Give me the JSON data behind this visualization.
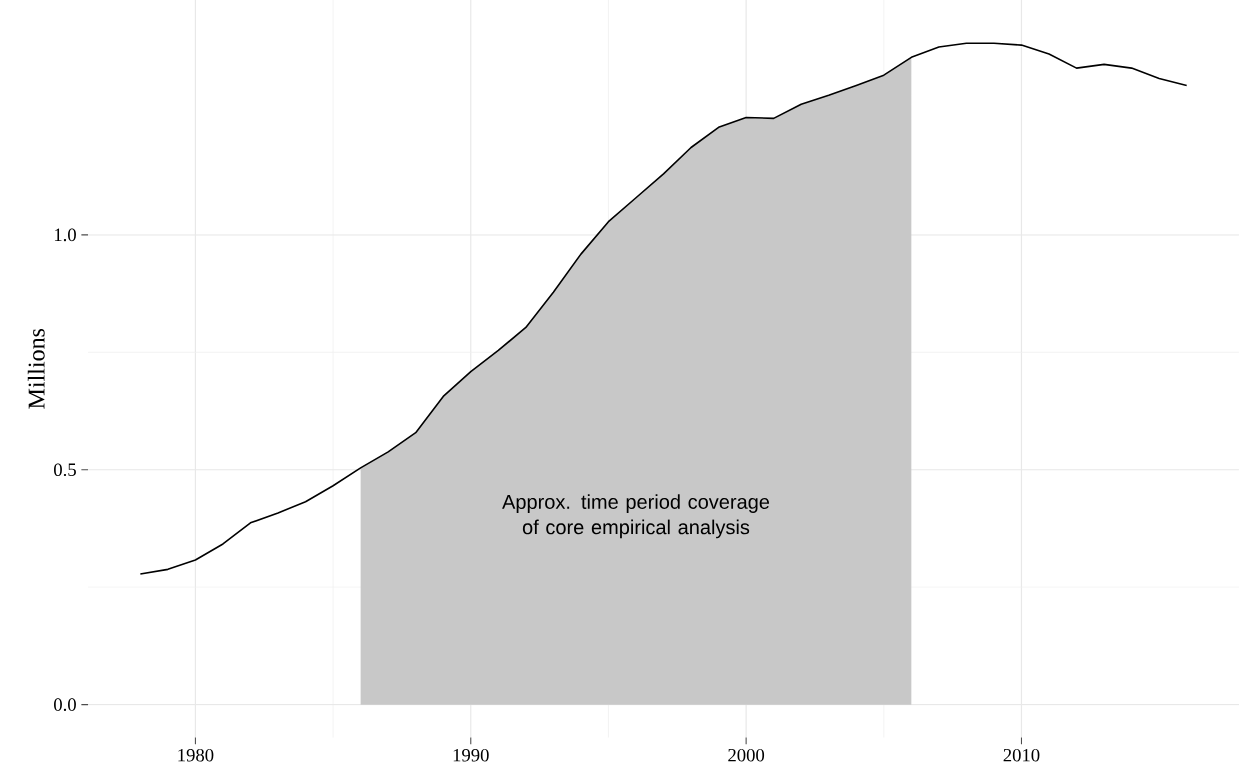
{
  "chart_data": {
    "type": "line",
    "ylabel": "Millions",
    "xlim": [
      1976.1,
      2017.9
    ],
    "ylim": [
      -0.07,
      1.5
    ],
    "xticks": [
      1980,
      1990,
      2000,
      2010
    ],
    "yticks": [
      {
        "value": 0,
        "label": "0.0"
      },
      {
        "value": 0.5,
        "label": "0.5"
      },
      {
        "value": 1,
        "label": "1.0"
      }
    ],
    "grid": true,
    "series": [
      {
        "type": "area",
        "color": "#c8c8c8",
        "x": [
          1986,
          1987,
          1988,
          1989,
          1990,
          1991,
          1992,
          1993,
          1994,
          1995,
          1996,
          1997,
          1998,
          1999,
          2000,
          2001,
          2002,
          2003,
          2004,
          2005,
          2006
        ],
        "values": [
          0.504,
          0.538,
          0.579,
          0.656,
          0.709,
          0.754,
          0.803,
          0.878,
          0.959,
          1.028,
          1.079,
          1.13,
          1.186,
          1.229,
          1.25,
          1.248,
          1.278,
          1.297,
          1.318,
          1.34,
          1.378
        ]
      },
      {
        "color": "#000000",
        "x": [
          1978,
          1979,
          1980,
          1981,
          1982,
          1983,
          1984,
          1985,
          1986,
          1987,
          1988,
          1989,
          1990,
          1991,
          1992,
          1993,
          1994,
          1995,
          1996,
          1997,
          1998,
          1999,
          2000,
          2001,
          2002,
          2003,
          2004,
          2005,
          2006,
          2007,
          2008,
          2009,
          2010,
          2011,
          2012,
          2013,
          2014,
          2015,
          2016
        ],
        "values": [
          0.278,
          0.288,
          0.308,
          0.342,
          0.387,
          0.408,
          0.432,
          0.466,
          0.504,
          0.538,
          0.579,
          0.656,
          0.709,
          0.754,
          0.803,
          0.878,
          0.959,
          1.028,
          1.079,
          1.13,
          1.186,
          1.229,
          1.25,
          1.248,
          1.278,
          1.297,
          1.318,
          1.34,
          1.378,
          1.4,
          1.408,
          1.408,
          1.404,
          1.385,
          1.355,
          1.363,
          1.355,
          1.333,
          1.318
        ]
      }
    ],
    "annotations": [
      "Approx. time period coverage of core empirical analysis"
    ]
  }
}
